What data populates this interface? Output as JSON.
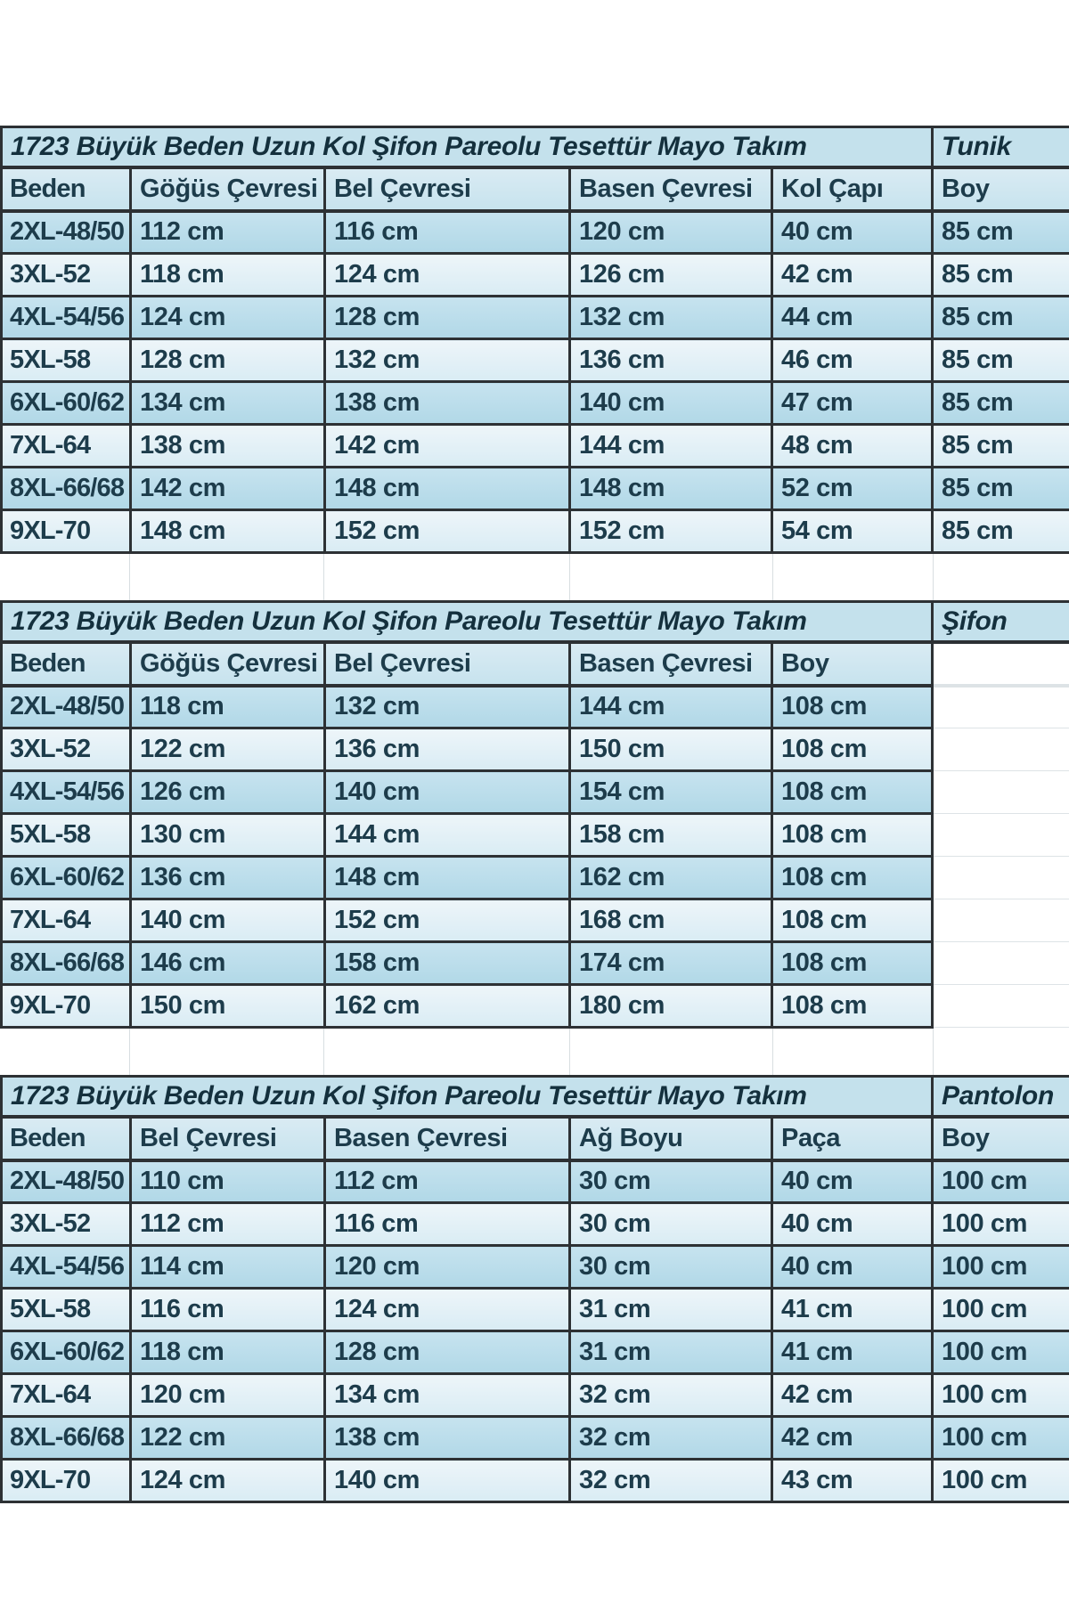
{
  "sheet": {
    "background": "#ffffff",
    "colors": {
      "title_bg": "#c4e1ec",
      "header_bg": "#cfe7f1",
      "row_dark": "#b9dce9",
      "row_light": "#e3f0f6",
      "border": "#2d3134",
      "text": "#1d3c4b",
      "ghost_gridline": "#dde3e6"
    }
  },
  "tables": [
    {
      "title": "1723 Büyük Beden Uzun Kol Şifon Pareolu Tesettür Mayo Takım",
      "piece": "Tunik",
      "columns": [
        "Beden",
        "Göğüs Çevresi",
        "Bel Çevresi",
        "Basen Çevresi",
        "Kol Çapı",
        "Boy"
      ],
      "rows": [
        [
          "2XL-48/50",
          "112 cm",
          "116 cm",
          "120 cm",
          "40 cm",
          "85 cm"
        ],
        [
          "3XL-52",
          "118 cm",
          "124 cm",
          "126 cm",
          "42 cm",
          "85 cm"
        ],
        [
          "4XL-54/56",
          "124 cm",
          "128 cm",
          "132 cm",
          "44 cm",
          "85 cm"
        ],
        [
          "5XL-58",
          "128 cm",
          "132 cm",
          "136 cm",
          "46 cm",
          "85 cm"
        ],
        [
          "6XL-60/62",
          "134 cm",
          "138 cm",
          "140 cm",
          "47 cm",
          "85 cm"
        ],
        [
          "7XL-64",
          "138 cm",
          "142 cm",
          "144 cm",
          "48 cm",
          "85 cm"
        ],
        [
          "8XL-66/68",
          "142 cm",
          "148 cm",
          "148 cm",
          "52 cm",
          "85 cm"
        ],
        [
          "9XL-70",
          "148 cm",
          "152 cm",
          "152 cm",
          "54 cm",
          "85 cm"
        ]
      ]
    },
    {
      "title": "1723 Büyük Beden Uzun Kol Şifon Pareolu Tesettür Mayo Takım",
      "piece": "Şifon",
      "columns": [
        "Beden",
        "Göğüs Çevresi",
        "Bel Çevresi",
        "Basen Çevresi",
        "Boy"
      ],
      "rows": [
        [
          "2XL-48/50",
          "118 cm",
          "132 cm",
          "144 cm",
          "108 cm"
        ],
        [
          "3XL-52",
          "122 cm",
          "136 cm",
          "150 cm",
          "108 cm"
        ],
        [
          "4XL-54/56",
          "126 cm",
          "140 cm",
          "154 cm",
          "108 cm"
        ],
        [
          "5XL-58",
          "130 cm",
          "144 cm",
          "158 cm",
          "108 cm"
        ],
        [
          "6XL-60/62",
          "136 cm",
          "148 cm",
          "162 cm",
          "108 cm"
        ],
        [
          "7XL-64",
          "140 cm",
          "152 cm",
          "168 cm",
          "108 cm"
        ],
        [
          "8XL-66/68",
          "146 cm",
          "158 cm",
          "174 cm",
          "108 cm"
        ],
        [
          "9XL-70",
          "150 cm",
          "162 cm",
          "180 cm",
          "108 cm"
        ]
      ]
    },
    {
      "title": "1723 Büyük Beden Uzun Kol Şifon Pareolu Tesettür Mayo Takım",
      "piece": "Pantolon",
      "columns": [
        "Beden",
        "Bel Çevresi",
        "Basen Çevresi",
        "Ağ Boyu",
        "Paça",
        "Boy"
      ],
      "rows": [
        [
          "2XL-48/50",
          "110 cm",
          "112 cm",
          "30 cm",
          "40 cm",
          "100 cm"
        ],
        [
          "3XL-52",
          "112 cm",
          "116 cm",
          "30 cm",
          "40 cm",
          "100 cm"
        ],
        [
          "4XL-54/56",
          "114 cm",
          "120 cm",
          "30 cm",
          "40 cm",
          "100 cm"
        ],
        [
          "5XL-58",
          "116 cm",
          "124 cm",
          "31 cm",
          "41 cm",
          "100 cm"
        ],
        [
          "6XL-60/62",
          "118 cm",
          "128 cm",
          "31 cm",
          "41 cm",
          "100 cm"
        ],
        [
          "7XL-64",
          "120 cm",
          "134 cm",
          "32 cm",
          "42 cm",
          "100 cm"
        ],
        [
          "8XL-66/68",
          "122 cm",
          "138 cm",
          "32 cm",
          "42 cm",
          "100 cm"
        ],
        [
          "9XL-70",
          "124 cm",
          "140 cm",
          "32 cm",
          "43 cm",
          "100 cm"
        ]
      ]
    }
  ]
}
